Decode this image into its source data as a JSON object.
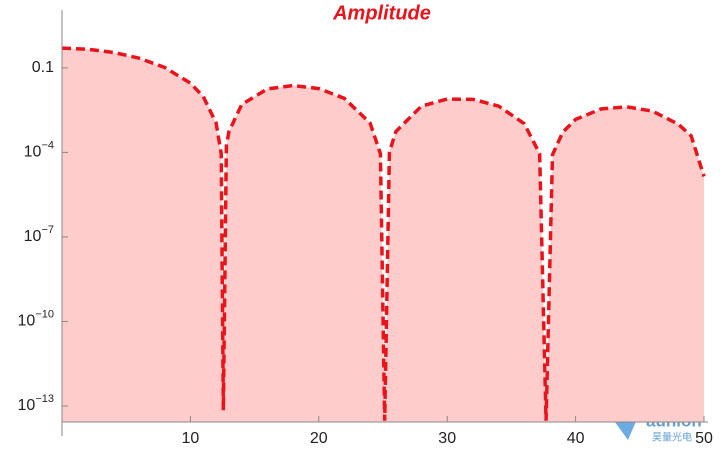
{
  "chart_data": {
    "type": "area",
    "title": "Amplitude",
    "log_y": true,
    "color": "#e8141b",
    "fill_color": "#ffcccc",
    "x": [
      0,
      2,
      4,
      6,
      8,
      10,
      11,
      12,
      12.4,
      12.5664,
      12.8,
      13,
      14,
      16,
      18,
      20,
      22,
      24,
      24.8,
      25.1327,
      25.5,
      26,
      28,
      30,
      32,
      34,
      36,
      37.2,
      37.6991,
      38.2,
      39,
      40,
      42,
      44,
      46,
      48,
      49,
      50
    ],
    "values": [
      0.5,
      0.4597,
      0.354,
      0.2211,
      0.1034,
      0.02866,
      0.00963,
      0.001106,
      9e-05,
      7e-14,
      0.000166,
      0.00055,
      0.00502,
      0.0179,
      0.02359,
      0.01839,
      0.00823,
      0.001084,
      8.98e-05,
      3e-14,
      0.000103,
      0.000548,
      0.0044,
      0.00782,
      0.00765,
      0.00441,
      0.001048,
      8.96e-05,
      3e-14,
      8.2e-05,
      0.000523,
      0.00148,
      0.00351,
      0.00413,
      0.0029,
      0.001,
      0.000387,
      1.4e-05
    ],
    "xlim": [
      0,
      50
    ],
    "xticks": [
      10,
      20,
      30,
      40,
      50
    ],
    "ylim": [
      2.7e-14,
      5
    ],
    "yticks": [
      0.1,
      {
        "value": 0.0001,
        "label": "10−4"
      },
      {
        "value": 1e-07,
        "label": "10−7"
      },
      {
        "value": 1e-10,
        "label": "10−10"
      },
      {
        "value": 1e-13,
        "label": "10−13"
      }
    ]
  },
  "watermark": {
    "brand": "aunion",
    "sub": "昊量光电"
  }
}
